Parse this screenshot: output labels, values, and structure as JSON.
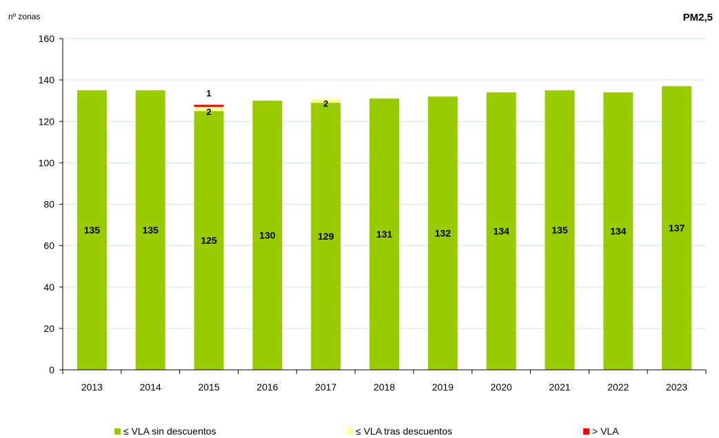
{
  "chart_data": {
    "type": "bar",
    "stacked": true,
    "title": "PM2,5",
    "ylabel": "nº zonas",
    "xlabel": "",
    "ylim": [
      0,
      160
    ],
    "yticks": [
      0,
      20,
      40,
      60,
      80,
      100,
      120,
      140,
      160
    ],
    "grid": true,
    "legend_position": "bottom",
    "categories": [
      "2013",
      "2014",
      "2015",
      "2016",
      "2017",
      "2018",
      "2019",
      "2020",
      "2021",
      "2022",
      "2023"
    ],
    "series": [
      {
        "name": "≤ VLA sin descuentos",
        "color": "#99cc00",
        "values": [
          135,
          135,
          125,
          130,
          129,
          131,
          132,
          134,
          135,
          134,
          137
        ]
      },
      {
        "name": "≤ VLA tras descuentos",
        "color": "#ffff99",
        "values": [
          0,
          0,
          2,
          0,
          2,
          0,
          0,
          0,
          0,
          0,
          0
        ]
      },
      {
        "name": "> VLA",
        "color": "#ff0000",
        "values": [
          0,
          0,
          1,
          0,
          0,
          0,
          0,
          0,
          0,
          0,
          0
        ]
      }
    ]
  }
}
